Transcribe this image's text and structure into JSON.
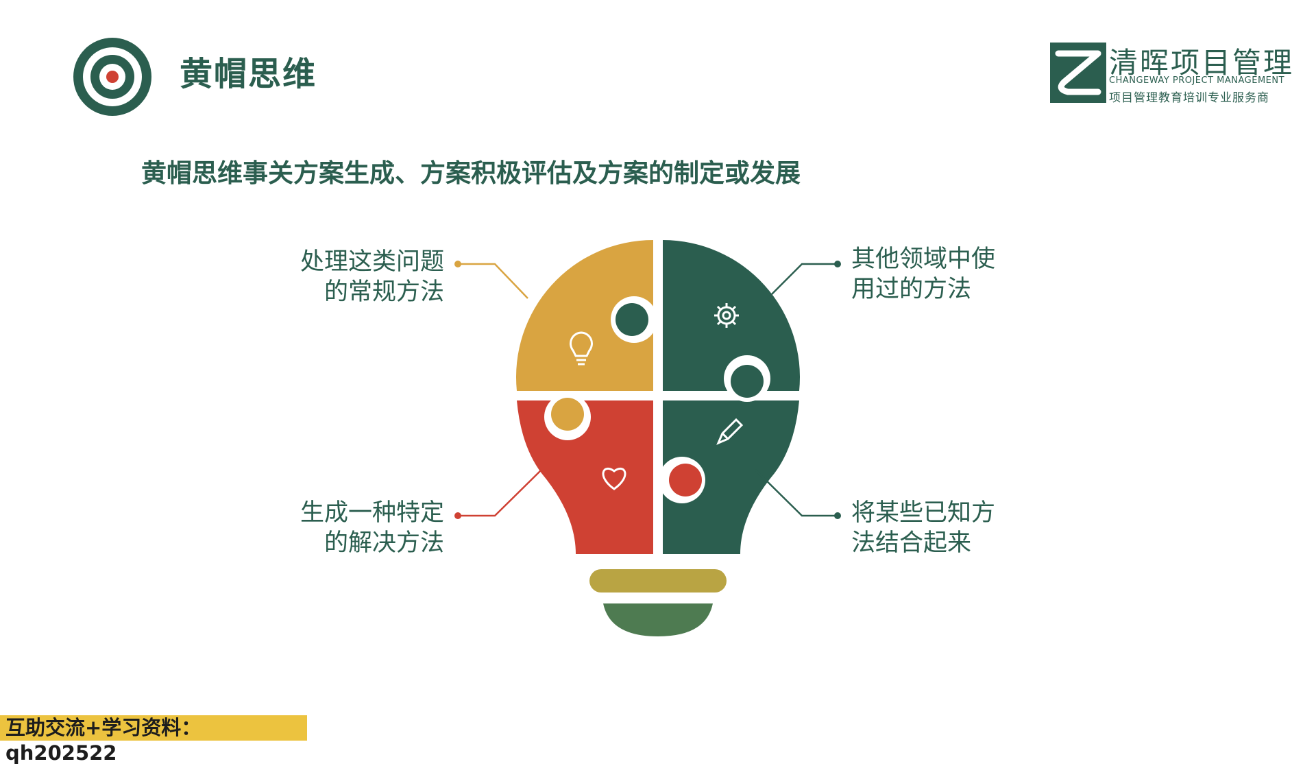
{
  "header": {
    "title": "黄帽思维"
  },
  "logo": {
    "name_cn": "清晖项目管理",
    "name_en": "CHANGEWAY PROJECT MANAGEMENT",
    "tagline": "项目管理教育培训专业服务商"
  },
  "subtitle": "黄帽思维事关方案生成、方案积极评估及方案的制定或发展",
  "items": [
    {
      "lines": [
        "处理这类问题",
        "的常规方法"
      ],
      "icon": "lightbulb-icon",
      "color": "#d9a441"
    },
    {
      "lines": [
        "其他领域中使",
        "用过的方法"
      ],
      "icon": "gear-icon",
      "color": "#2b5e4f"
    },
    {
      "lines": [
        "生成一种特定",
        "的解决方法"
      ],
      "icon": "heart-icon",
      "color": "#cf4133"
    },
    {
      "lines": [
        "将某些已知方",
        "法结合起来"
      ],
      "icon": "pencil-icon",
      "color": "#2b5e4f"
    }
  ],
  "footer": {
    "text": "互助交流+学习资料：qh202522"
  },
  "colors": {
    "dark_green": "#2b5e4f",
    "yellow": "#d9a441",
    "red": "#cf4133",
    "footer_bg": "#ecc33f"
  }
}
